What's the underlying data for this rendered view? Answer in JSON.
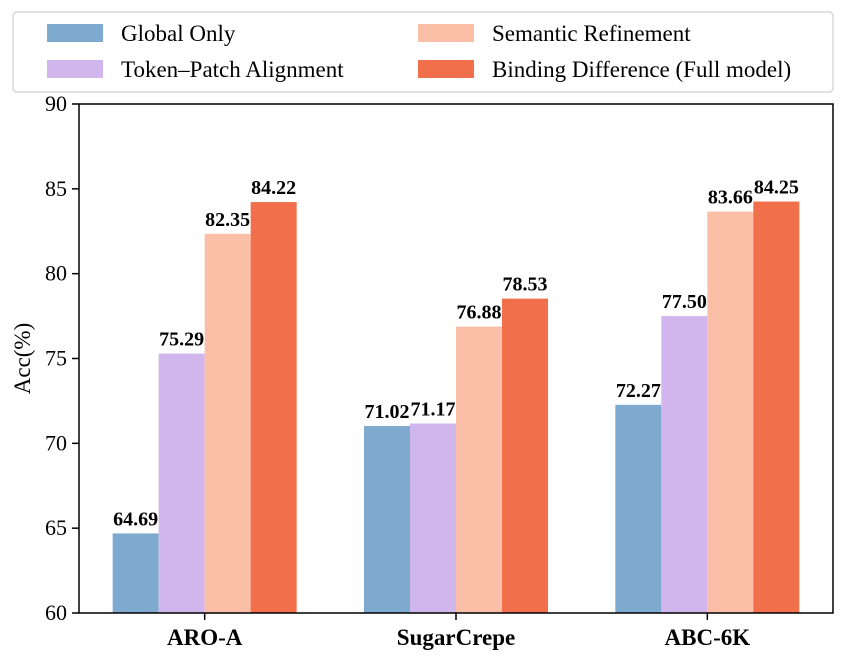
{
  "chart_data": {
    "type": "bar",
    "title": "",
    "xlabel": "",
    "ylabel": "Acc(%)",
    "ylim": [
      60,
      90
    ],
    "yticks": [
      60,
      65,
      70,
      75,
      80,
      85,
      90
    ],
    "grid": false,
    "legend_position": "top",
    "categories": [
      "ARO-A",
      "SugarCrepe",
      "ABC-6K"
    ],
    "series": [
      {
        "name": "Global Only",
        "color": "#7eaacf",
        "values": [
          64.69,
          71.02,
          72.27
        ],
        "labels": [
          "64.69",
          "71.02",
          "72.27"
        ]
      },
      {
        "name": "Token–Patch Alignment",
        "color": "#d0b6ec",
        "values": [
          75.29,
          71.17,
          77.5
        ],
        "labels": [
          "75.29",
          "71.17",
          "77.50"
        ]
      },
      {
        "name": "Semantic Refinement",
        "color": "#fbbea7",
        "values": [
          82.35,
          76.88,
          83.66
        ],
        "labels": [
          "82.35",
          "76.88",
          "83.66"
        ]
      },
      {
        "name": "Binding Difference (Full model)",
        "color": "#f1704b",
        "values": [
          84.22,
          78.53,
          84.25
        ],
        "labels": [
          "84.22",
          "78.53",
          "84.25"
        ]
      }
    ]
  }
}
